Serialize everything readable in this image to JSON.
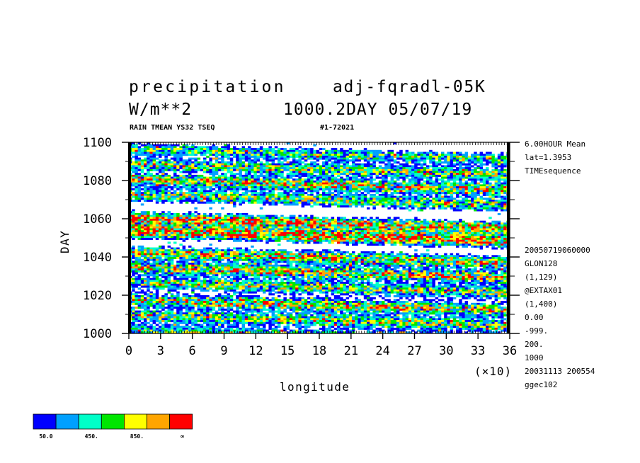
{
  "header": {
    "title_left": "precipitation",
    "title_right": "adj-fqradl-05K",
    "units": "W/m**2",
    "timestamp": "1000.2DAY 05/07/19",
    "subtitle_left": "RAIN TMEAN YS32 TSEQ",
    "subtitle_right": "#1-72021"
  },
  "side_info": {
    "top": [
      "6.00HOUR Mean",
      "lat=1.3953",
      "TIMEsequence"
    ],
    "bottom": [
      "20050719060000",
      "GLON128",
      "(1,129)",
      "@EXTAX01",
      "(1,400)",
      "0.00",
      "-999.",
      "200.",
      "1000",
      "20031113 200554",
      "ggec102"
    ]
  },
  "chart_data": {
    "type": "heatmap",
    "xlabel": "longitude",
    "ylabel": "DAY",
    "x_multiplier_label": "(×10)",
    "xlim": [
      0,
      36
    ],
    "ylim": [
      1000,
      1100
    ],
    "x_ticks": [
      0,
      3,
      6,
      9,
      12,
      15,
      18,
      21,
      24,
      27,
      30,
      33,
      36
    ],
    "y_ticks": [
      1000,
      1020,
      1040,
      1060,
      1080,
      1100
    ],
    "x_tick_labels": [
      "0",
      "3",
      "6",
      "9",
      "12",
      "15",
      "18",
      "21",
      "24",
      "27",
      "30",
      "33",
      "36"
    ],
    "y_tick_labels": [
      "1000",
      "1020",
      "1040",
      "1060",
      "1080",
      "1100"
    ],
    "levels": [
      50,
      250,
      450,
      650,
      850,
      1050
    ],
    "colors": [
      "#0000ff",
      "#00a0ff",
      "#00ffc8",
      "#00e600",
      "#ffff00",
      "#ffa500",
      "#ff0000"
    ],
    "colorbar_labels": [
      "50.0",
      "450.",
      "850.",
      "∞"
    ],
    "colorbar_label_positions": [
      0,
      2,
      4,
      6
    ],
    "bands": [
      {
        "day": 1002,
        "x0": 0,
        "x1": 36,
        "intensity": 0.8
      },
      {
        "day": 1010,
        "x0": 0,
        "x1": 36,
        "intensity": 0.9
      },
      {
        "day": 1018,
        "x0": 0,
        "x1": 36,
        "intensity": 1.0
      },
      {
        "day": 1027,
        "x0": 0,
        "x1": 36,
        "intensity": 0.9
      },
      {
        "day": 1035,
        "x0": 0,
        "x1": 36,
        "intensity": 1.0
      },
      {
        "day": 1043,
        "x0": 0,
        "x1": 36,
        "intensity": 1.0
      },
      {
        "day": 1054,
        "x0": 0,
        "x1": 36,
        "intensity": 1.2
      },
      {
        "day": 1061,
        "x0": 0,
        "x1": 36,
        "intensity": 1.1
      },
      {
        "day": 1073,
        "x0": 0,
        "x1": 36,
        "intensity": 0.9
      },
      {
        "day": 1081,
        "x0": 0,
        "x1": 36,
        "intensity": 1.0
      },
      {
        "day": 1089,
        "x0": 0,
        "x1": 36,
        "intensity": 0.9
      },
      {
        "day": 1097,
        "x0": 0,
        "x1": 36,
        "intensity": 0.8
      }
    ]
  }
}
